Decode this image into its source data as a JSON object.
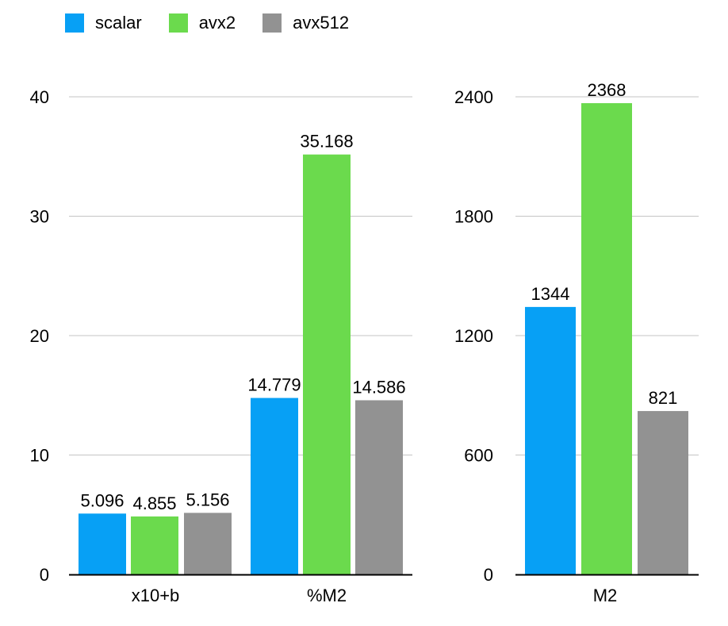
{
  "legend": {
    "items": [
      {
        "label": "scalar",
        "color": "#07a0f5"
      },
      {
        "label": "avx2",
        "color": "#6bda4d"
      },
      {
        "label": "avx512",
        "color": "#929292"
      }
    ]
  },
  "chart_data": [
    {
      "type": "bar",
      "categories": [
        "x10+b",
        "%M2"
      ],
      "series": [
        {
          "name": "scalar",
          "values": [
            5.096,
            14.779
          ],
          "labels": [
            "5.096",
            "14.779"
          ]
        },
        {
          "name": "avx2",
          "values": [
            4.855,
            35.168
          ],
          "labels": [
            "4.855",
            "35.168"
          ]
        },
        {
          "name": "avx512",
          "values": [
            5.156,
            14.586
          ],
          "labels": [
            "5.156",
            "14.586"
          ]
        }
      ],
      "yticks": [
        0,
        10,
        20,
        30,
        40
      ],
      "ylim": [
        0,
        40
      ],
      "grid": true,
      "legend_position": "top-left"
    },
    {
      "type": "bar",
      "categories": [
        "M2"
      ],
      "series": [
        {
          "name": "scalar",
          "values": [
            1344
          ],
          "labels": [
            "1344"
          ]
        },
        {
          "name": "avx2",
          "values": [
            2368
          ],
          "labels": [
            "2368"
          ]
        },
        {
          "name": "avx512",
          "values": [
            821
          ],
          "labels": [
            "821"
          ]
        }
      ],
      "yticks": [
        0,
        600,
        1200,
        1800,
        2400
      ],
      "ylim": [
        0,
        2400
      ],
      "grid": true,
      "legend_position": "top-left"
    }
  ]
}
